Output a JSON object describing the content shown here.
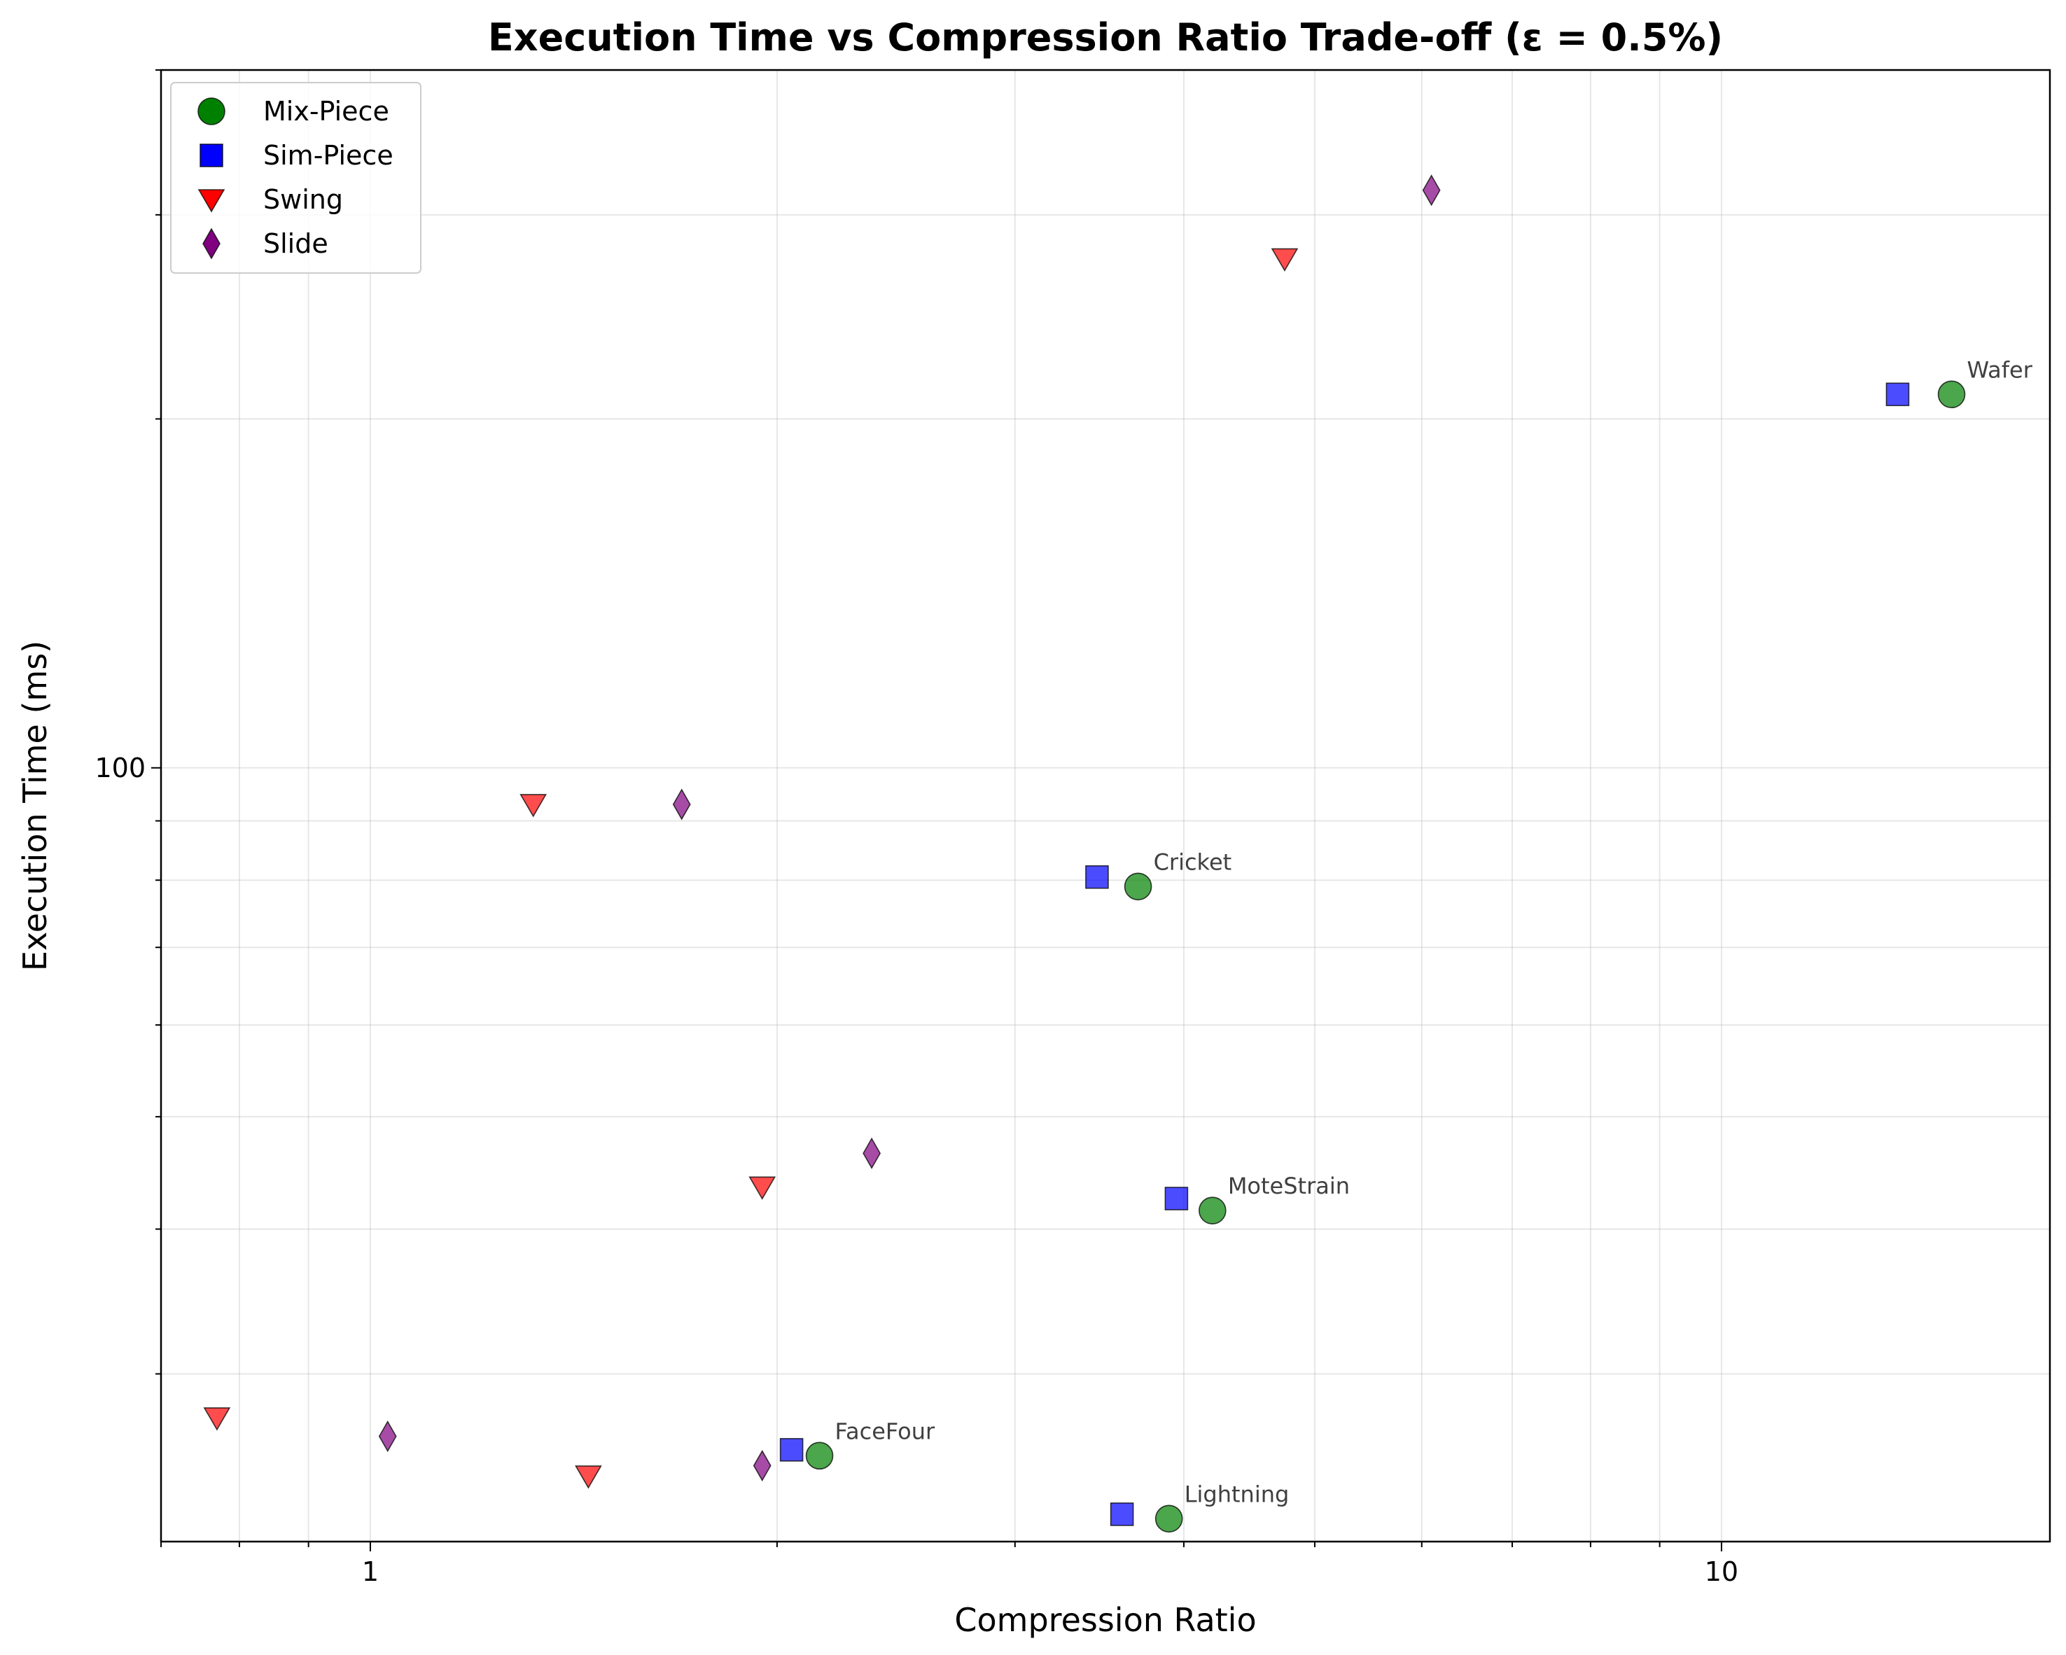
{
  "chart_data": {
    "type": "scatter",
    "title": "Execution Time vs Compression Ratio Trade-off (ε = 0.5%)",
    "xlabel": "Compression Ratio",
    "ylabel": "Execution Time (ms)",
    "xscale": "log",
    "yscale": "log",
    "xlim": [
      0.7,
      17.5
    ],
    "ylim": [
      21.5,
      400
    ],
    "xticks": [
      {
        "value": 1,
        "label": "1"
      },
      {
        "value": 10,
        "label": "10"
      }
    ],
    "yticks": [
      {
        "value": 100,
        "label": "100"
      }
    ],
    "grid": true,
    "legend_position": "top-left",
    "series": [
      {
        "name": "Mix-Piece",
        "marker": "circle",
        "color": "#008000",
        "points": [
          [
            14.8,
            210
          ],
          [
            3.7,
            79
          ],
          [
            4.2,
            41.5
          ],
          [
            2.15,
            25.5
          ],
          [
            3.9,
            22.5
          ]
        ]
      },
      {
        "name": "Sim-Piece",
        "marker": "square",
        "color": "#0000ff",
        "points": [
          [
            13.5,
            210
          ],
          [
            3.45,
            80.5
          ],
          [
            3.95,
            42.5
          ],
          [
            2.05,
            25.8
          ],
          [
            3.6,
            22.7
          ]
        ]
      },
      {
        "name": "Swing",
        "marker": "triangle-down",
        "color": "#ff0000",
        "points": [
          [
            4.75,
            275
          ],
          [
            1.32,
            93
          ],
          [
            1.95,
            43.5
          ],
          [
            0.77,
            27.5
          ],
          [
            1.45,
            24.5
          ]
        ]
      },
      {
        "name": "Slide",
        "marker": "diamond",
        "color": "#800080",
        "points": [
          [
            6.1,
            315
          ],
          [
            1.7,
            93
          ],
          [
            2.35,
            46.5
          ],
          [
            1.03,
            26.5
          ],
          [
            1.95,
            25
          ]
        ]
      }
    ],
    "annotations": [
      {
        "text": "Wafer",
        "x": 14.8,
        "y": 210
      },
      {
        "text": "Cricket",
        "x": 3.7,
        "y": 79
      },
      {
        "text": "MoteStrain",
        "x": 4.2,
        "y": 41.5
      },
      {
        "text": "FaceFour",
        "x": 2.15,
        "y": 25.5
      },
      {
        "text": "Lightning",
        "x": 3.9,
        "y": 22.5
      }
    ]
  }
}
